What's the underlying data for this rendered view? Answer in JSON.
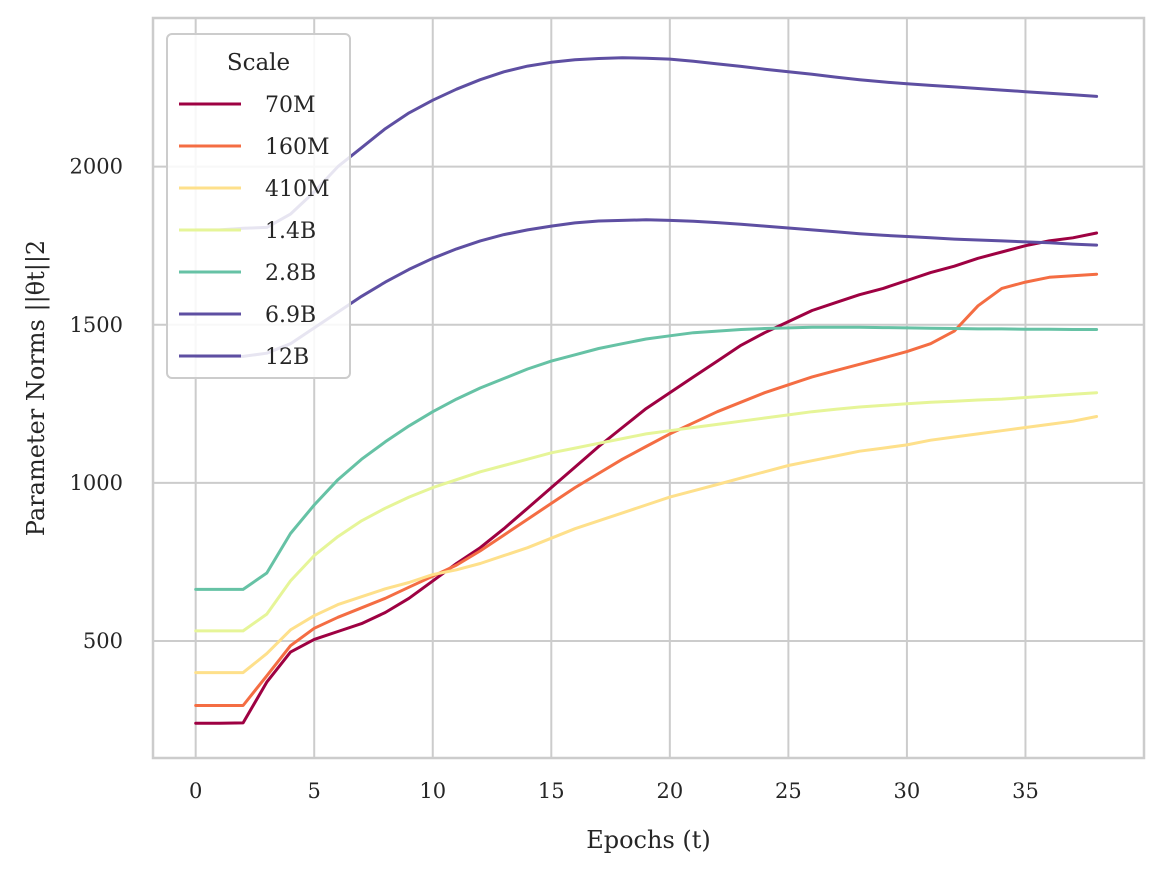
{
  "chart_data": {
    "type": "line",
    "title": "",
    "xlabel": "Epochs (t)",
    "ylabel": "Parameter Norms ||θt||2",
    "xlim": [
      -1.8,
      40
    ],
    "ylim": [
      130,
      2470
    ],
    "xticks": [
      0,
      5,
      10,
      15,
      20,
      25,
      30,
      35
    ],
    "yticks": [
      500,
      1000,
      1500,
      2000
    ],
    "grid": true,
    "legend": {
      "title": "Scale",
      "placement": "top-left"
    },
    "x": [
      0,
      1,
      2,
      3,
      4,
      5,
      6,
      7,
      8,
      9,
      10,
      11,
      12,
      13,
      14,
      15,
      16,
      17,
      18,
      19,
      20,
      21,
      22,
      23,
      24,
      25,
      26,
      27,
      28,
      29,
      30,
      31,
      32,
      33,
      34,
      35,
      36,
      37,
      38
    ],
    "series": [
      {
        "name": "70M",
        "color": "#9e0142",
        "values": [
          240,
          240,
          241,
          370,
          465,
          505,
          530,
          555,
          590,
          635,
          690,
          745,
          795,
          855,
          920,
          985,
          1050,
          1115,
          1175,
          1235,
          1285,
          1335,
          1385,
          1435,
          1475,
          1510,
          1545,
          1570,
          1595,
          1615,
          1640,
          1665,
          1685,
          1710,
          1730,
          1750,
          1765,
          1775,
          1790
        ]
      },
      {
        "name": "160M",
        "color": "#f46d43",
        "values": [
          296,
          296,
          296,
          390,
          485,
          540,
          575,
          605,
          635,
          670,
          705,
          740,
          785,
          835,
          885,
          935,
          985,
          1030,
          1075,
          1115,
          1155,
          1190,
          1225,
          1255,
          1285,
          1310,
          1335,
          1355,
          1375,
          1395,
          1415,
          1440,
          1480,
          1560,
          1615,
          1635,
          1650,
          1655,
          1660
        ]
      },
      {
        "name": "410M",
        "color": "#fee08b",
        "values": [
          400,
          400,
          400,
          460,
          535,
          580,
          615,
          640,
          665,
          685,
          710,
          725,
          745,
          770,
          795,
          825,
          855,
          880,
          905,
          930,
          955,
          975,
          995,
          1015,
          1035,
          1055,
          1070,
          1085,
          1100,
          1110,
          1120,
          1135,
          1145,
          1155,
          1165,
          1175,
          1185,
          1195,
          1210
        ]
      },
      {
        "name": "1.4B",
        "color": "#e6f598",
        "values": [
          532,
          532,
          532,
          585,
          690,
          770,
          830,
          880,
          920,
          955,
          985,
          1010,
          1035,
          1055,
          1075,
          1095,
          1110,
          1125,
          1140,
          1155,
          1165,
          1175,
          1185,
          1195,
          1205,
          1215,
          1225,
          1233,
          1240,
          1245,
          1250,
          1255,
          1258,
          1262,
          1265,
          1270,
          1275,
          1280,
          1285
        ]
      },
      {
        "name": "2.8B",
        "color": "#66c2a5",
        "values": [
          663,
          663,
          663,
          715,
          840,
          930,
          1010,
          1075,
          1130,
          1180,
          1225,
          1265,
          1300,
          1330,
          1360,
          1385,
          1405,
          1425,
          1440,
          1455,
          1465,
          1475,
          1480,
          1485,
          1488,
          1490,
          1492,
          1492,
          1492,
          1491,
          1490,
          1489,
          1488,
          1487,
          1487,
          1486,
          1486,
          1485,
          1485
        ]
      },
      {
        "name": "6.9B",
        "color": "#5e4fa2",
        "values": [
          1400,
          1400,
          1400,
          1410,
          1440,
          1490,
          1540,
          1590,
          1635,
          1675,
          1710,
          1740,
          1765,
          1785,
          1800,
          1812,
          1822,
          1828,
          1830,
          1832,
          1830,
          1827,
          1823,
          1818,
          1812,
          1806,
          1800,
          1794,
          1788,
          1783,
          1779,
          1775,
          1771,
          1768,
          1765,
          1762,
          1759,
          1755,
          1752
        ]
      },
      {
        "name": "12B",
        "color": "#5e4fa2",
        "values": [
          1800,
          1800,
          1805,
          1808,
          1850,
          1920,
          2000,
          2060,
          2120,
          2170,
          2210,
          2245,
          2275,
          2300,
          2318,
          2330,
          2338,
          2342,
          2344,
          2343,
          2340,
          2333,
          2325,
          2317,
          2308,
          2300,
          2292,
          2283,
          2275,
          2268,
          2262,
          2257,
          2252,
          2247,
          2242,
          2237,
          2232,
          2227,
          2222
        ]
      }
    ]
  }
}
